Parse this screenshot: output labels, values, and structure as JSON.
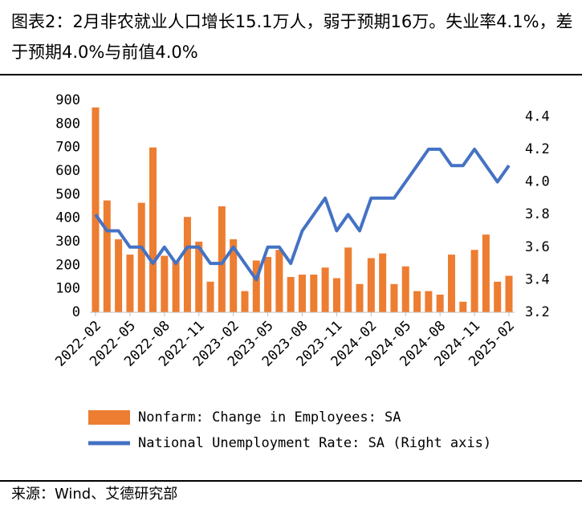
{
  "title": "图表2：2月非农就业人口增长15.1万人，弱于预期16万。失业率4.1%，差于预期4.0%与前值4.0%",
  "source": "来源：Wind、艾德研究部",
  "chart_data": {
    "type": "bar_line",
    "categories": [
      "2022-02",
      null,
      null,
      "2022-05",
      null,
      null,
      "2022-08",
      null,
      null,
      "2022-11",
      null,
      null,
      "2023-02",
      null,
      null,
      "2023-05",
      null,
      null,
      "2023-08",
      null,
      null,
      "2023-11",
      null,
      null,
      "2024-02",
      null,
      null,
      "2024-05",
      null,
      null,
      "2024-08",
      null,
      null,
      "2024-11",
      null,
      null,
      "2025-02"
    ],
    "series": [
      {
        "name": "Nonfarm: Change in Employees: SA",
        "color": "#ED7D31",
        "type": "bar",
        "values": [
          870,
          475,
          310,
          245,
          465,
          700,
          240,
          220,
          405,
          300,
          130,
          450,
          310,
          90,
          220,
          235,
          265,
          150,
          160,
          160,
          190,
          145,
          275,
          120,
          230,
          250,
          120,
          195,
          90,
          90,
          75,
          245,
          45,
          265,
          330,
          130,
          155
        ]
      },
      {
        "name": "National Unemployment Rate: SA (Right axis)",
        "color": "#4472C4",
        "type": "line",
        "axis": "y2",
        "values": [
          3.8,
          3.7,
          3.7,
          3.6,
          3.6,
          3.5,
          3.6,
          3.5,
          3.6,
          3.6,
          3.5,
          3.5,
          3.6,
          3.5,
          3.4,
          3.6,
          3.6,
          3.5,
          3.7,
          3.8,
          3.9,
          3.7,
          3.8,
          3.7,
          3.9,
          3.9,
          3.9,
          4.0,
          4.1,
          4.2,
          4.2,
          4.1,
          4.1,
          4.2,
          4.1,
          4.0,
          4.1
        ]
      }
    ],
    "ylim": [
      0,
      900
    ],
    "yticks": [
      0,
      100,
      200,
      300,
      400,
      500,
      600,
      700,
      800,
      900
    ],
    "y2lim": [
      3.2,
      4.5
    ],
    "y2ticks": [
      {
        "value": 3.2,
        "label": "3.2"
      },
      {
        "value": 3.4,
        "label": "3.4"
      },
      {
        "value": 3.6,
        "label": "3.6"
      },
      {
        "value": 3.8,
        "label": "3.8"
      },
      {
        "value": 4.0,
        "label": "4.0"
      },
      {
        "value": 4.2,
        "label": "4.2"
      },
      {
        "value": 4.4,
        "label": "4.4"
      }
    ],
    "legend": "bottom"
  }
}
